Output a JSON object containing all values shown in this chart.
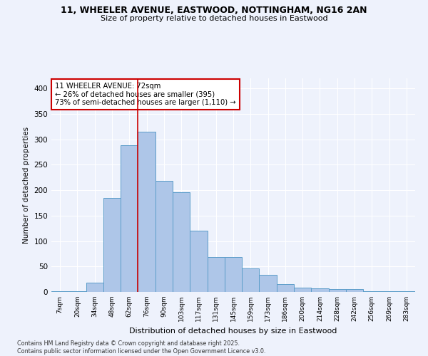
{
  "title_line1": "11, WHEELER AVENUE, EASTWOOD, NOTTINGHAM, NG16 2AN",
  "title_line2": "Size of property relative to detached houses in Eastwood",
  "xlabel": "Distribution of detached houses by size in Eastwood",
  "ylabel": "Number of detached properties",
  "categories": [
    "7sqm",
    "20sqm",
    "34sqm",
    "48sqm",
    "62sqm",
    "76sqm",
    "90sqm",
    "103sqm",
    "117sqm",
    "131sqm",
    "145sqm",
    "159sqm",
    "173sqm",
    "186sqm",
    "200sqm",
    "214sqm",
    "228sqm",
    "242sqm",
    "256sqm",
    "269sqm",
    "283sqm"
  ],
  "values": [
    2,
    2,
    18,
    185,
    288,
    315,
    218,
    196,
    120,
    69,
    69,
    46,
    34,
    15,
    8,
    7,
    5,
    5,
    2,
    2,
    2
  ],
  "bar_color": "#aec6e8",
  "bar_edgecolor": "#5b9dc9",
  "vline_x": 5.0,
  "vline_color": "#cc0000",
  "annotation_text": "11 WHEELER AVENUE: 72sqm\n← 26% of detached houses are smaller (395)\n73% of semi-detached houses are larger (1,110) →",
  "annotation_box_color": "#ffffff",
  "annotation_box_edgecolor": "#cc0000",
  "ylim": [
    0,
    420
  ],
  "yticks": [
    0,
    50,
    100,
    150,
    200,
    250,
    300,
    350,
    400
  ],
  "bg_color": "#eef2fc",
  "footer_text": "Contains HM Land Registry data © Crown copyright and database right 2025.\nContains public sector information licensed under the Open Government Licence v3.0."
}
